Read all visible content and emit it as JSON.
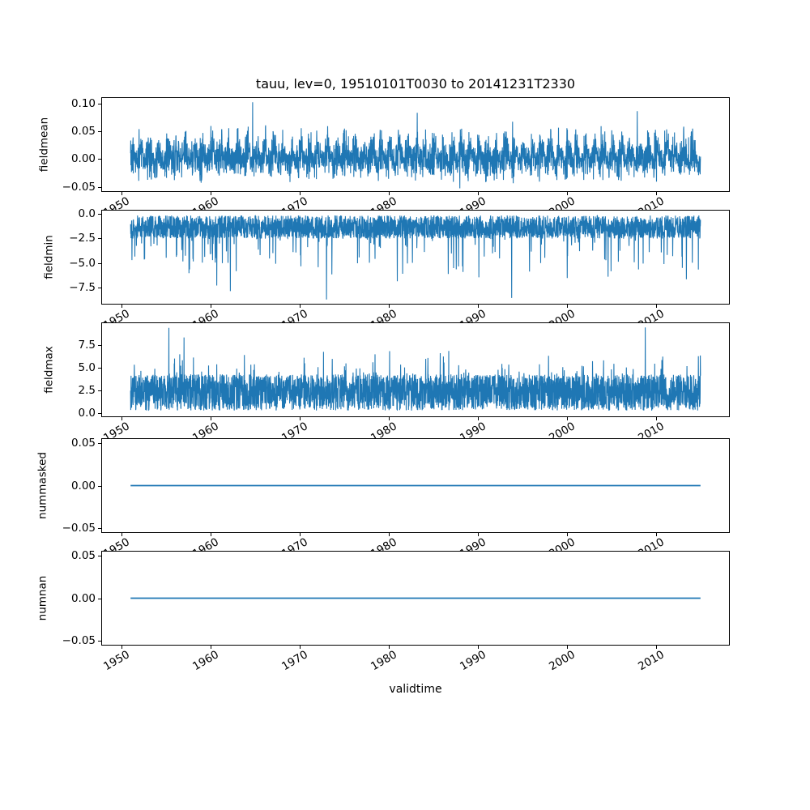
{
  "figure": {
    "background": "#ffffff",
    "text_color": "#000000",
    "axes_edge_color": "#000000"
  },
  "chart_data": {
    "type": "line",
    "title": "tauu, lev=0, 19510101T0030 to 20141231T2330",
    "xlabel": "validtime",
    "line_color": "#1f77b4",
    "grid": false,
    "legend": false,
    "xlim": [
      1947.8,
      2018.2
    ],
    "x_data_range": [
      1951.0,
      2015.0
    ],
    "xtick_values": [
      1950,
      1960,
      1970,
      1980,
      1990,
      2000,
      2010
    ],
    "xtick_labels": [
      "1950",
      "1960",
      "1970",
      "1980",
      "1990",
      "2000",
      "2010"
    ],
    "subplots": [
      {
        "name": "fieldmean",
        "ylabel": "fieldmean",
        "ylim": [
          -0.0576,
          0.1096
        ],
        "ytick_values": [
          0.1,
          0.05,
          0.0,
          -0.05
        ],
        "ytick_labels": [
          "0.10",
          "0.05",
          "0.00",
          "−0.05"
        ],
        "series": {
          "kind": "noise",
          "seed": 11,
          "n_points": 3200,
          "center": 0.004,
          "seasonal_amp": 0.009,
          "spread_base": 0.019,
          "spread_seasonal": 0.02,
          "tail_prob": 0.05,
          "tail_scale": 0.028,
          "clamp": [
            -0.053,
            0.088
          ],
          "extremes": [
            {
              "x": 1964.7,
              "y": 0.102
            },
            {
              "x": 1983.2,
              "y": 0.083
            },
            {
              "x": 2007.9,
              "y": 0.086
            }
          ]
        }
      },
      {
        "name": "fieldmin",
        "ylabel": "fieldmin",
        "ylim": [
          -9.13,
          0.31
        ],
        "ytick_values": [
          0.0,
          -2.5,
          -5.0,
          -7.5
        ],
        "ytick_labels": [
          "0.0",
          "−2.5",
          "−5.0",
          "−7.5"
        ],
        "series": {
          "kind": "band",
          "seed": 22,
          "n_points": 3200,
          "band": [
            -2.53,
            -0.18
          ],
          "dir": -1,
          "tail_prob": 0.055,
          "tail_scale": 4.8,
          "tail_pow": 1.7,
          "deep_prob": 0.012,
          "deep_scale": 5.4,
          "clamp_extent": -7.9,
          "extremes": [
            {
              "x": 1973.0,
              "y": -8.7
            },
            {
              "x": 1993.8,
              "y": -8.55
            },
            {
              "x": 1962.2,
              "y": -7.85
            }
          ]
        }
      },
      {
        "name": "fieldmax",
        "ylabel": "fieldmax",
        "ylim": [
          -0.31,
          9.86
        ],
        "ytick_values": [
          7.5,
          5.0,
          2.5,
          0.0
        ],
        "ytick_labels": [
          "7.5",
          "5.0",
          "2.5",
          "0.0"
        ],
        "series": {
          "kind": "band",
          "seed": 33,
          "n_points": 3200,
          "band": [
            0.32,
            4.27
          ],
          "dir": 1,
          "tail_prob": 0.06,
          "tail_scale": 2.7,
          "tail_pow": 1.6,
          "deep_prob": 0.012,
          "deep_scale": 3.2,
          "clamp_extent": 7.6,
          "extremes": [
            {
              "x": 1955.3,
              "y": 9.35
            },
            {
              "x": 1957.0,
              "y": 8.3
            },
            {
              "x": 2008.8,
              "y": 9.4
            }
          ]
        }
      },
      {
        "name": "nummasked",
        "ylabel": "nummasked",
        "ylim": [
          -0.055,
          0.055
        ],
        "ytick_values": [
          0.05,
          0.0,
          -0.05
        ],
        "ytick_labels": [
          "0.05",
          "0.00",
          "−0.05"
        ],
        "series": {
          "kind": "constant",
          "value": 0.0
        }
      },
      {
        "name": "numnan",
        "ylabel": "numnan",
        "ylim": [
          -0.055,
          0.055
        ],
        "ytick_values": [
          0.05,
          0.0,
          -0.05
        ],
        "ytick_labels": [
          "0.05",
          "0.00",
          "−0.05"
        ],
        "series": {
          "kind": "constant",
          "value": 0.0
        }
      }
    ]
  }
}
